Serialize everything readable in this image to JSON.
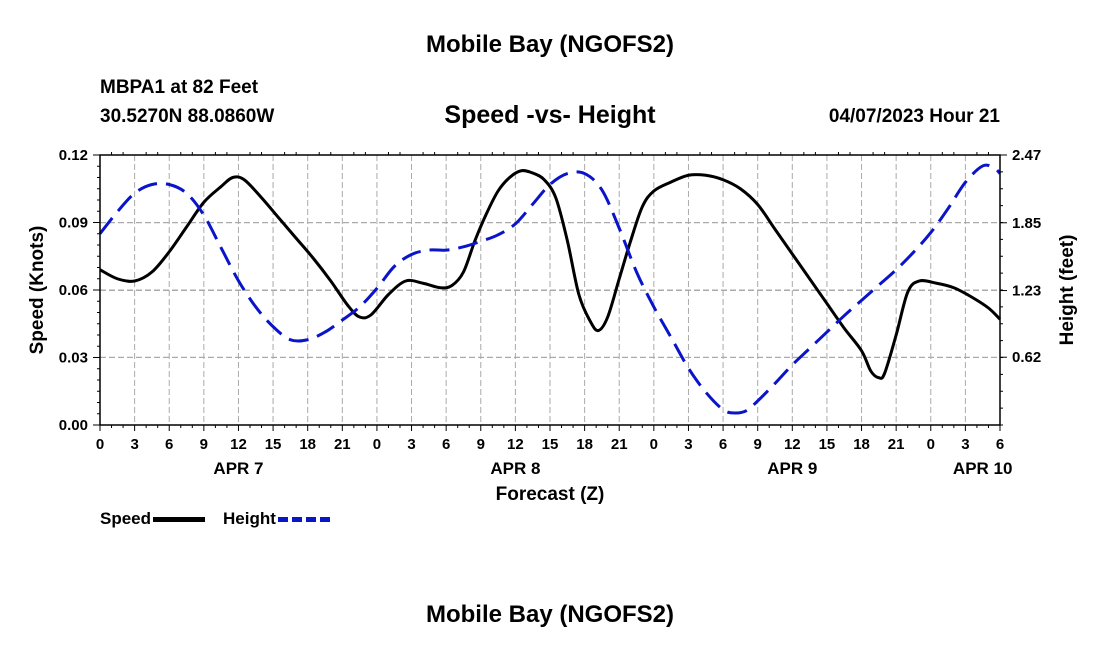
{
  "header": {
    "title": "Mobile Bay (NGOFS2)",
    "station": "MBPA1 at 82 Feet",
    "coords": "30.5270N  88.0860W",
    "subtitle": "Speed -vs- Height",
    "forecast_time": "04/07/2023 Hour 21"
  },
  "footer": {
    "title": "Mobile Bay (NGOFS2)"
  },
  "legend": {
    "speed_label": "Speed",
    "height_label": "Height"
  },
  "colors": {
    "speed": "#000000",
    "height": "#0a14c8",
    "grid": "#aaaaaa"
  },
  "chart_data": {
    "type": "line",
    "title": "Speed -vs- Height",
    "xlabel": "Forecast (Z)",
    "ylabel": "Speed (Knots)",
    "y2label": "Height (feet)",
    "x_range_hours": [
      0,
      78
    ],
    "ylim": [
      0,
      0.12
    ],
    "y2lim": [
      0,
      2.47
    ],
    "y_ticks": [
      "0.00",
      "0.03",
      "0.06",
      "0.09",
      "0.12"
    ],
    "y_tick_values": [
      0,
      0.03,
      0.06,
      0.09,
      0.12
    ],
    "y2_ticks": [
      "0.62",
      "1.23",
      "1.85",
      "2.47"
    ],
    "y2_tick_values": [
      0.62,
      1.23,
      1.85,
      2.47
    ],
    "x_ticks": [
      {
        "hour": 0,
        "label": "0"
      },
      {
        "hour": 3,
        "label": "3"
      },
      {
        "hour": 6,
        "label": "6"
      },
      {
        "hour": 9,
        "label": "9"
      },
      {
        "hour": 12,
        "label": "12"
      },
      {
        "hour": 15,
        "label": "15"
      },
      {
        "hour": 18,
        "label": "18"
      },
      {
        "hour": 21,
        "label": "21"
      },
      {
        "hour": 24,
        "label": "0"
      },
      {
        "hour": 27,
        "label": "3"
      },
      {
        "hour": 30,
        "label": "6"
      },
      {
        "hour": 33,
        "label": "9"
      },
      {
        "hour": 36,
        "label": "12"
      },
      {
        "hour": 39,
        "label": "15"
      },
      {
        "hour": 42,
        "label": "18"
      },
      {
        "hour": 45,
        "label": "21"
      },
      {
        "hour": 48,
        "label": "0"
      },
      {
        "hour": 51,
        "label": "3"
      },
      {
        "hour": 54,
        "label": "6"
      },
      {
        "hour": 57,
        "label": "9"
      },
      {
        "hour": 60,
        "label": "12"
      },
      {
        "hour": 63,
        "label": "15"
      },
      {
        "hour": 66,
        "label": "18"
      },
      {
        "hour": 69,
        "label": "21"
      },
      {
        "hour": 72,
        "label": "0"
      },
      {
        "hour": 75,
        "label": "3"
      },
      {
        "hour": 78,
        "label": "6"
      }
    ],
    "date_labels": [
      {
        "hour": 12,
        "label": "APR 7"
      },
      {
        "hour": 36,
        "label": "APR 8"
      },
      {
        "hour": 60,
        "label": "APR 9"
      },
      {
        "hour": 76.5,
        "label": "APR 10"
      }
    ],
    "series": [
      {
        "name": "Speed",
        "axis": "left",
        "style": "solid",
        "points": [
          [
            0,
            0.069
          ],
          [
            1.5,
            0.065
          ],
          [
            3,
            0.064
          ],
          [
            4.5,
            0.068
          ],
          [
            6,
            0.077
          ],
          [
            7.5,
            0.088
          ],
          [
            9,
            0.099
          ],
          [
            10.5,
            0.106
          ],
          [
            11.5,
            0.11
          ],
          [
            12.5,
            0.109
          ],
          [
            14,
            0.101
          ],
          [
            15.5,
            0.092
          ],
          [
            17,
            0.083
          ],
          [
            18.5,
            0.074
          ],
          [
            20,
            0.064
          ],
          [
            21.5,
            0.053
          ],
          [
            22.5,
            0.048
          ],
          [
            23.5,
            0.049
          ],
          [
            25,
            0.058
          ],
          [
            26.5,
            0.064
          ],
          [
            28,
            0.063
          ],
          [
            29.5,
            0.061
          ],
          [
            30.5,
            0.062
          ],
          [
            31.5,
            0.068
          ],
          [
            32.5,
            0.082
          ],
          [
            33.5,
            0.094
          ],
          [
            34.5,
            0.104
          ],
          [
            35.5,
            0.11
          ],
          [
            36.5,
            0.113
          ],
          [
            37.5,
            0.112
          ],
          [
            38.5,
            0.109
          ],
          [
            39.5,
            0.101
          ],
          [
            40.5,
            0.082
          ],
          [
            41.5,
            0.058
          ],
          [
            42.5,
            0.046
          ],
          [
            43.2,
            0.042
          ],
          [
            44,
            0.048
          ],
          [
            45,
            0.065
          ],
          [
            46,
            0.082
          ],
          [
            47,
            0.097
          ],
          [
            48,
            0.104
          ],
          [
            49.5,
            0.108
          ],
          [
            51,
            0.111
          ],
          [
            52.5,
            0.111
          ],
          [
            54,
            0.109
          ],
          [
            55.5,
            0.105
          ],
          [
            57,
            0.098
          ],
          [
            58.5,
            0.087
          ],
          [
            60,
            0.076
          ],
          [
            61.5,
            0.065
          ],
          [
            63,
            0.054
          ],
          [
            64.5,
            0.043
          ],
          [
            66,
            0.033
          ],
          [
            66.8,
            0.024
          ],
          [
            67.5,
            0.021
          ],
          [
            68,
            0.023
          ],
          [
            69,
            0.04
          ],
          [
            70,
            0.059
          ],
          [
            71,
            0.064
          ],
          [
            72.5,
            0.063
          ],
          [
            74,
            0.061
          ],
          [
            75.5,
            0.057
          ],
          [
            77,
            0.052
          ],
          [
            78,
            0.047
          ]
        ]
      },
      {
        "name": "Height",
        "axis": "right",
        "style": "dashed",
        "points": [
          [
            0,
            1.75
          ],
          [
            1.5,
            1.95
          ],
          [
            3,
            2.12
          ],
          [
            4.5,
            2.2
          ],
          [
            6,
            2.2
          ],
          [
            7.5,
            2.12
          ],
          [
            9,
            1.92
          ],
          [
            10.5,
            1.62
          ],
          [
            12,
            1.32
          ],
          [
            13.5,
            1.08
          ],
          [
            15,
            0.9
          ],
          [
            16.5,
            0.78
          ],
          [
            18,
            0.78
          ],
          [
            19.5,
            0.85
          ],
          [
            21,
            0.96
          ],
          [
            22.5,
            1.08
          ],
          [
            24,
            1.25
          ],
          [
            25.5,
            1.45
          ],
          [
            27,
            1.56
          ],
          [
            28.5,
            1.6
          ],
          [
            30,
            1.6
          ],
          [
            31.5,
            1.63
          ],
          [
            33,
            1.68
          ],
          [
            34.5,
            1.74
          ],
          [
            36,
            1.84
          ],
          [
            37.5,
            2.02
          ],
          [
            39,
            2.2
          ],
          [
            40.5,
            2.3
          ],
          [
            42,
            2.3
          ],
          [
            43.5,
            2.15
          ],
          [
            45,
            1.8
          ],
          [
            46.5,
            1.4
          ],
          [
            48,
            1.08
          ],
          [
            49.5,
            0.8
          ],
          [
            51,
            0.52
          ],
          [
            52.5,
            0.3
          ],
          [
            54,
            0.14
          ],
          [
            55,
            0.11
          ],
          [
            56,
            0.13
          ],
          [
            57,
            0.22
          ],
          [
            58.5,
            0.38
          ],
          [
            60,
            0.55
          ],
          [
            61.5,
            0.7
          ],
          [
            63,
            0.85
          ],
          [
            64.5,
            1.0
          ],
          [
            66,
            1.14
          ],
          [
            67.5,
            1.28
          ],
          [
            69,
            1.42
          ],
          [
            70.5,
            1.58
          ],
          [
            72,
            1.76
          ],
          [
            73.5,
            1.98
          ],
          [
            75,
            2.22
          ],
          [
            76.5,
            2.37
          ],
          [
            77.5,
            2.35
          ],
          [
            78,
            2.3
          ]
        ]
      }
    ]
  }
}
